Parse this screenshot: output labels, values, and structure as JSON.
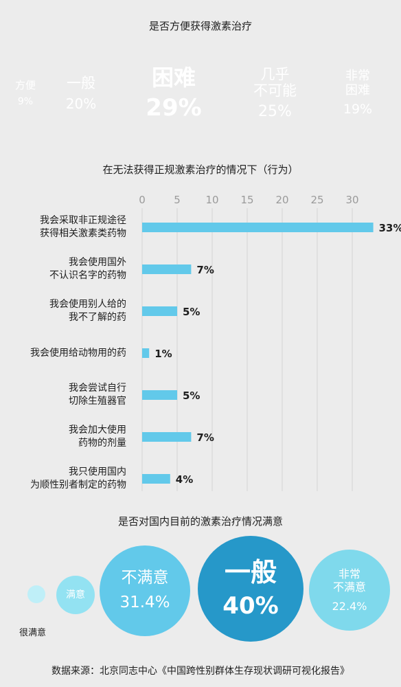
{
  "chart_data": [
    {
      "type": "treemap",
      "title": "是否方便获得激素治疗",
      "items": [
        {
          "label": "方便",
          "value": 9,
          "value_label": "9%",
          "color": "#b9ecf6"
        },
        {
          "label": "一般",
          "value": 20,
          "value_label": "20%",
          "color": "#7fdaea"
        },
        {
          "label": "困难",
          "value": 29,
          "value_label": "29%",
          "color": "#4fbfe5"
        },
        {
          "label": "几乎\n不可能",
          "value": 25,
          "value_label": "25%",
          "color": "#69cfee"
        },
        {
          "label": "非常\n困难",
          "value": 19,
          "value_label": "19%",
          "color": "#93e5f7"
        }
      ]
    },
    {
      "type": "bar",
      "orientation": "horizontal",
      "title": "在无法获得正规激素治疗的情况下（行为）",
      "xlim": [
        0,
        33
      ],
      "xticks": [
        "0",
        "5",
        "10",
        "15",
        "20",
        "25",
        "30"
      ],
      "xtick_values": [
        0,
        5,
        10,
        15,
        20,
        25,
        30
      ],
      "categories": [
        "我会采取非正规途径\n获得相关激素类药物",
        "我会使用国外\n不认识名字的药物",
        "我会使用别人给的\n我不了解的药",
        "我会使用给动物用的药",
        "我会尝试自行\n切除生殖器官",
        "我会加大使用\n药物的剂量",
        "我只使用国内\n为顺性别者制定的药物"
      ],
      "values": [
        33,
        7,
        5,
        1,
        5,
        7,
        4
      ],
      "value_labels": [
        "33%",
        "7%",
        "5%",
        "1%",
        "5%",
        "7%",
        "4%"
      ],
      "bar_color": "#62c9ea",
      "grid": true
    },
    {
      "type": "bubble",
      "title": "是否对国内目前的激素治疗情况满意",
      "items": [
        {
          "label": "很满意",
          "value": null,
          "value_label": "",
          "color": "#bfeff8",
          "label_outside": true
        },
        {
          "label": "满意",
          "value": null,
          "value_label": "",
          "color": "#93e2f2"
        },
        {
          "label": "不满意",
          "value": 31.4,
          "value_label": "31.4%",
          "color": "#62c9ea"
        },
        {
          "label": "一般",
          "value": 40,
          "value_label": "40%",
          "color": "#2698c9"
        },
        {
          "label": "非常\n不满意",
          "value": 22.4,
          "value_label": "22.4%",
          "color": "#7fd9ec"
        }
      ]
    }
  ],
  "source": "数据来源：北京同志中心《中国跨性别群体生存现状调研可视化报告》"
}
